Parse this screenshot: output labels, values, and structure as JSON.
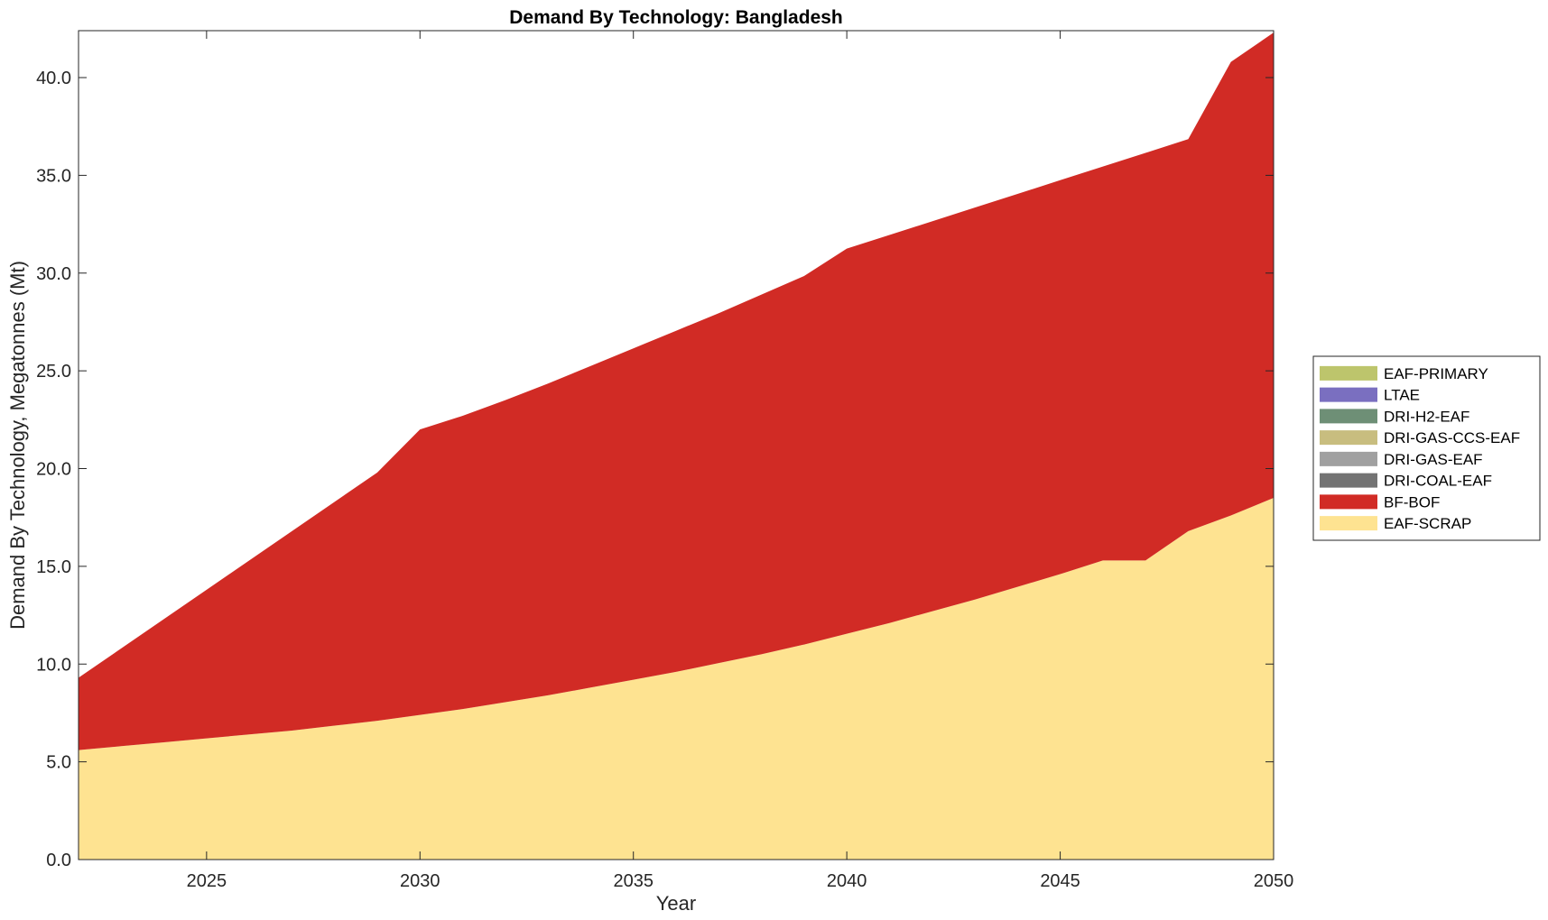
{
  "chart_data": {
    "type": "area",
    "stacked": true,
    "title": "Demand By Technology: Bangladesh",
    "xlabel": "Year",
    "ylabel": "Demand By Technology, Megatonnes (Mt)",
    "xlim": [
      2022,
      2050
    ],
    "ylim": [
      0,
      42.4
    ],
    "xticks": [
      2025,
      2030,
      2035,
      2040,
      2045,
      2050
    ],
    "yticks": [
      0,
      5,
      10,
      15,
      20,
      25,
      30,
      35,
      40
    ],
    "ytick_labels": [
      "0.0",
      "5.0",
      "10.0",
      "15.0",
      "20.0",
      "25.0",
      "30.0",
      "35.0",
      "40.0"
    ],
    "legend_position": "east-outside",
    "x": [
      2022,
      2023,
      2024,
      2025,
      2026,
      2027,
      2028,
      2029,
      2030,
      2031,
      2032,
      2033,
      2034,
      2035,
      2036,
      2037,
      2038,
      2039,
      2040,
      2041,
      2042,
      2043,
      2044,
      2045,
      2046,
      2047,
      2048,
      2049,
      2050
    ],
    "series": [
      {
        "name": "EAF-SCRAP",
        "color": "#fee391",
        "values": [
          5.6,
          5.8,
          6.0,
          6.2,
          6.4,
          6.6,
          6.85,
          7.1,
          7.4,
          7.7,
          8.05,
          8.4,
          8.8,
          9.2,
          9.6,
          10.05,
          10.5,
          11.0,
          11.55,
          12.1,
          12.7,
          13.3,
          13.95,
          14.6,
          15.3,
          15.3,
          16.8,
          17.6,
          18.5
        ]
      },
      {
        "name": "BF-BOF",
        "color": "#d12b25",
        "values": [
          3.7,
          5.0,
          6.3,
          7.6,
          8.9,
          10.2,
          11.45,
          12.7,
          14.6,
          15.0,
          15.45,
          15.95,
          16.45,
          16.95,
          17.45,
          17.9,
          18.4,
          18.85,
          19.7,
          19.85,
          19.95,
          20.05,
          20.1,
          20.15,
          20.15,
          20.85,
          20.05,
          23.2,
          23.8
        ]
      },
      {
        "name": "DRI-COAL-EAF",
        "color": "#737373",
        "values": [
          0,
          0,
          0,
          0,
          0,
          0,
          0,
          0,
          0,
          0,
          0,
          0,
          0,
          0,
          0,
          0,
          0,
          0,
          0,
          0,
          0,
          0,
          0,
          0,
          0,
          0,
          0,
          0,
          0
        ]
      },
      {
        "name": "DRI-GAS-EAF",
        "color": "#a0a0a0",
        "values": [
          0,
          0,
          0,
          0,
          0,
          0,
          0,
          0,
          0,
          0,
          0,
          0,
          0,
          0,
          0,
          0,
          0,
          0,
          0,
          0,
          0,
          0,
          0,
          0,
          0,
          0,
          0,
          0,
          0
        ]
      },
      {
        "name": "DRI-GAS-CCS-EAF",
        "color": "#c8bd7f",
        "values": [
          0,
          0,
          0,
          0,
          0,
          0,
          0,
          0,
          0,
          0,
          0,
          0,
          0,
          0,
          0,
          0,
          0,
          0,
          0,
          0,
          0,
          0,
          0,
          0,
          0,
          0,
          0,
          0,
          0
        ]
      },
      {
        "name": "DRI-H2-EAF",
        "color": "#6e8f76",
        "values": [
          0,
          0,
          0,
          0,
          0,
          0,
          0,
          0,
          0,
          0,
          0,
          0,
          0,
          0,
          0,
          0,
          0,
          0,
          0,
          0,
          0,
          0,
          0,
          0,
          0,
          0,
          0,
          0,
          0
        ]
      },
      {
        "name": "LTAE",
        "color": "#7a6fc0",
        "values": [
          0,
          0,
          0,
          0,
          0,
          0,
          0,
          0,
          0,
          0,
          0,
          0,
          0,
          0,
          0,
          0,
          0,
          0,
          0,
          0,
          0,
          0,
          0,
          0,
          0,
          0,
          0,
          0,
          0
        ]
      },
      {
        "name": "EAF-PRIMARY",
        "color": "#bdc56c",
        "values": [
          0,
          0,
          0,
          0,
          0,
          0,
          0,
          0,
          0,
          0,
          0,
          0,
          0,
          0,
          0,
          0,
          0,
          0,
          0,
          0,
          0,
          0,
          0,
          0,
          0,
          0,
          0,
          0,
          0
        ]
      }
    ],
    "legend_order": [
      "EAF-PRIMARY",
      "LTAE",
      "DRI-H2-EAF",
      "DRI-GAS-CCS-EAF",
      "DRI-GAS-EAF",
      "DRI-COAL-EAF",
      "BF-BOF",
      "EAF-SCRAP"
    ]
  }
}
